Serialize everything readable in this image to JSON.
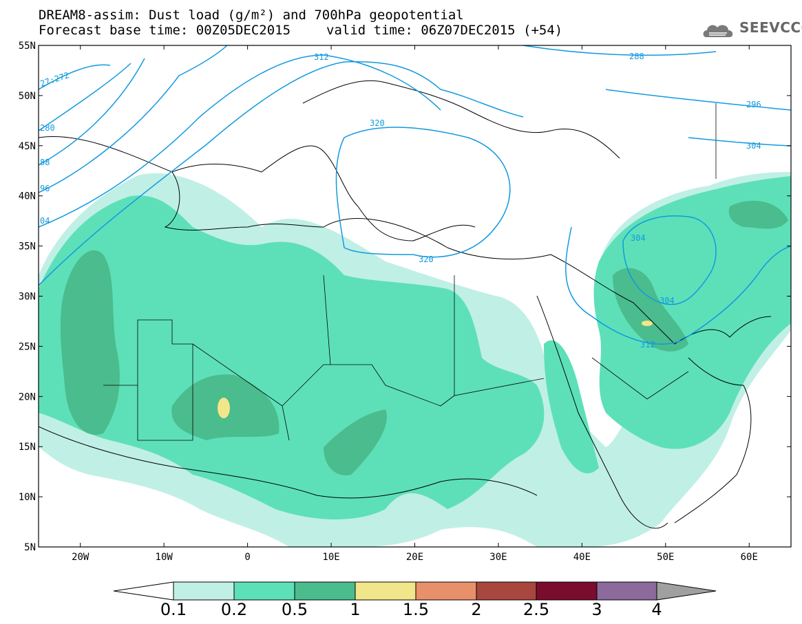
{
  "header": {
    "line1": "DREAM8-assim: Dust load (g/m²) and 700hPa geopotential",
    "base_time": "Forecast base time: 00Z05DEC2015",
    "valid_time": "valid time: 06Z07DEC2015 (+54)"
  },
  "logo": {
    "text": "SEEVCCC",
    "icon": "cloud-icon"
  },
  "map": {
    "lon_range": [
      -25,
      65
    ],
    "lat_range": [
      5,
      55
    ],
    "lat_ticks": [
      "55N",
      "50N",
      "45N",
      "40N",
      "35N",
      "30N",
      "25N",
      "20N",
      "15N",
      "10N",
      "5N"
    ],
    "lon_ticks": [
      "20W",
      "10W",
      "0",
      "10E",
      "20E",
      "30E",
      "40E",
      "50E",
      "60E"
    ],
    "contour_labels": [
      "27:272",
      "280",
      "88",
      "96",
      "04",
      "312",
      "288",
      "296",
      "304",
      "320",
      "320",
      "304",
      "304",
      "312"
    ],
    "contour_color": "#1199e0"
  },
  "colorbar": {
    "labels": [
      "0.1",
      "0.2",
      "0.5",
      "1",
      "1.5",
      "2",
      "2.5",
      "3",
      "4"
    ],
    "colors": [
      "#ffffff",
      "#c0efe6",
      "#5de0b8",
      "#4bbc8d",
      "#f2e68a",
      "#e8906a",
      "#a8473d",
      "#7a0d2e",
      "#8c6a9c",
      "#a0a0a0"
    ]
  }
}
